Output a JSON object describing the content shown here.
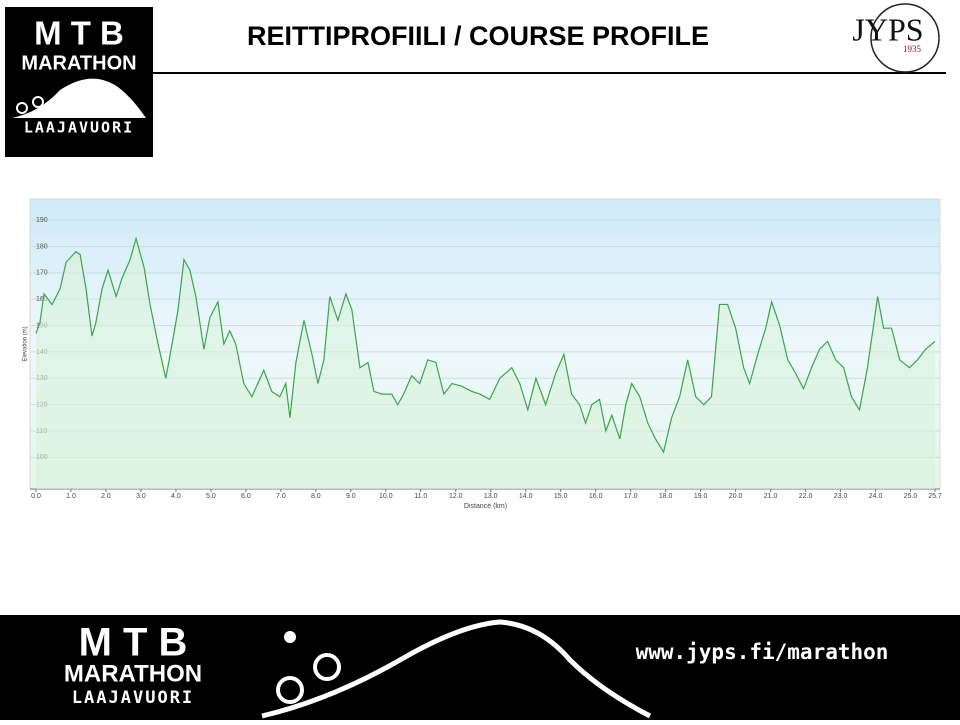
{
  "header": {
    "logo": {
      "line1": "M T B",
      "line2": "MARATHON",
      "line3": "LAAJAVUORI"
    },
    "title": "REITTIPROFIILI / COURSE PROFILE",
    "brand": {
      "name": "JYPS",
      "year": "1935"
    }
  },
  "chart_data": {
    "type": "area",
    "x_label": "Distance  (km)",
    "y_label": "Elevation (m)",
    "color": "#3aa64a",
    "grid": true,
    "x": [
      0.0,
      0.11,
      0.23,
      0.46,
      0.69,
      0.86,
      1.14,
      1.26,
      1.43,
      1.6,
      1.71,
      1.89,
      2.06,
      2.29,
      2.46,
      2.69,
      2.86,
      3.09,
      3.26,
      3.49,
      3.71,
      3.89,
      4.06,
      4.23,
      4.4,
      4.57,
      4.8,
      4.97,
      5.2,
      5.37,
      5.54,
      5.71,
      5.94,
      6.17,
      6.34,
      6.51,
      6.74,
      6.97,
      7.14,
      7.26,
      7.43,
      7.66,
      7.89,
      8.06,
      8.23,
      8.4,
      8.63,
      8.86,
      9.03,
      9.26,
      9.49,
      9.66,
      9.89,
      10.17,
      10.34,
      10.51,
      10.74,
      10.97,
      11.2,
      11.43,
      11.66,
      11.89,
      12.17,
      12.46,
      12.69,
      12.97,
      13.26,
      13.6,
      13.83,
      14.06,
      14.29,
      14.57,
      14.86,
      15.09,
      15.31,
      15.54,
      15.71,
      15.89,
      16.11,
      16.29,
      16.46,
      16.69,
      16.86,
      17.03,
      17.26,
      17.49,
      17.71,
      17.94,
      18.17,
      18.4,
      18.63,
      18.86,
      19.09,
      19.31,
      19.54,
      19.77,
      20.0,
      20.23,
      20.4,
      20.63,
      20.86,
      21.03,
      21.26,
      21.49,
      21.71,
      21.94,
      22.17,
      22.4,
      22.63,
      22.86,
      23.09,
      23.31,
      23.54,
      23.77,
      24.06,
      24.23,
      24.46,
      24.69,
      24.97,
      25.2,
      25.43,
      25.7
    ],
    "values": [
      147,
      151,
      162,
      158,
      164,
      174,
      178,
      177,
      164,
      146,
      151,
      164,
      171,
      161,
      168,
      175,
      183,
      172,
      158,
      143,
      130,
      143,
      156,
      175,
      171,
      161,
      141,
      153,
      159,
      143,
      148,
      143,
      128,
      123,
      128,
      133,
      125,
      123,
      128,
      115,
      136,
      152,
      139,
      128,
      137,
      161,
      152,
      162,
      156,
      134,
      136,
      125,
      124,
      124,
      120,
      124,
      131,
      128,
      137,
      136,
      124,
      128,
      127,
      125,
      124,
      122,
      130,
      134,
      128,
      118,
      130,
      120,
      132,
      139,
      124,
      120,
      113,
      120,
      122,
      110,
      116,
      107,
      120,
      128,
      123,
      113,
      107,
      102,
      115,
      123,
      137,
      123,
      120,
      123,
      158,
      158,
      149,
      134,
      128,
      139,
      149,
      159,
      150,
      137,
      132,
      126,
      134,
      141,
      144,
      137,
      134,
      123,
      118,
      134,
      161,
      149,
      149,
      137,
      134,
      137,
      141,
      144
    ],
    "xlim": [
      0,
      25.7
    ],
    "ylim": [
      88,
      198
    ],
    "xticks": [
      {
        "value": 0,
        "label": "0.0"
      },
      {
        "value": 1,
        "label": "1.0"
      },
      {
        "value": 2,
        "label": "2.0"
      },
      {
        "value": 3,
        "label": "3.0"
      },
      {
        "value": 4,
        "label": "4.0"
      },
      {
        "value": 5,
        "label": "5.0"
      },
      {
        "value": 6,
        "label": "6.0"
      },
      {
        "value": 7,
        "label": "7.0"
      },
      {
        "value": 8,
        "label": "8.0"
      },
      {
        "value": 9,
        "label": "9.0"
      },
      {
        "value": 10,
        "label": "10.0"
      },
      {
        "value": 11,
        "label": "11.0"
      },
      {
        "value": 12,
        "label": "12.0"
      },
      {
        "value": 13,
        "label": "13.0"
      },
      {
        "value": 14,
        "label": "14.0"
      },
      {
        "value": 15,
        "label": "15.0"
      },
      {
        "value": 16,
        "label": "16.0"
      },
      {
        "value": 17,
        "label": "17.0"
      },
      {
        "value": 18,
        "label": "18.0"
      },
      {
        "value": 19,
        "label": "19.0"
      },
      {
        "value": 20,
        "label": "20.0"
      },
      {
        "value": 21,
        "label": "21.0"
      },
      {
        "value": 22,
        "label": "22.0"
      },
      {
        "value": 23,
        "label": "23.0"
      },
      {
        "value": 24,
        "label": "24.0"
      },
      {
        "value": 25,
        "label": "25.0"
      },
      {
        "value": 25.7,
        "label": "25.7"
      }
    ],
    "yticks": [
      100,
      110,
      120,
      130,
      140,
      150,
      160,
      170,
      180,
      190
    ]
  },
  "footer": {
    "url": "www.jyps.fi/marathon"
  }
}
